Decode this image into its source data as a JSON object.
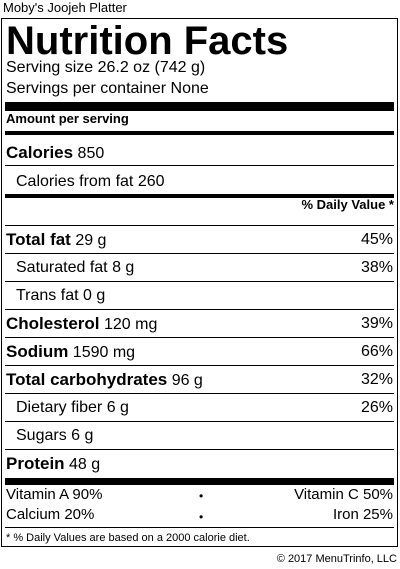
{
  "restaurant": "Moby's Joojeh Platter",
  "title": "Nutrition Facts",
  "serving_size": "Serving size 26.2 oz (742 g)",
  "servings_per_container": "Servings per container None",
  "amount_per_serving": "Amount per serving",
  "calories": {
    "label": "Calories",
    "value": "850"
  },
  "calories_from_fat": {
    "label": "Calories from fat",
    "value": "260"
  },
  "daily_value_header": "% Daily Value *",
  "nutrients": [
    {
      "label": "Total fat",
      "amount": "29 g",
      "dv": "45%"
    },
    {
      "label": "Saturated fat",
      "amount": "8 g",
      "dv": "38%"
    },
    {
      "label": "Trans fat",
      "amount": "0 g",
      "dv": ""
    },
    {
      "label": "Cholesterol",
      "amount": "120 mg",
      "dv": "39%"
    },
    {
      "label": "Sodium",
      "amount": "1590 mg",
      "dv": "66%"
    },
    {
      "label": "Total carbohydrates",
      "amount": "96 g",
      "dv": "32%"
    },
    {
      "label": "Dietary fiber",
      "amount": "6 g",
      "dv": "26%"
    },
    {
      "label": "Sugars",
      "amount": "6 g",
      "dv": ""
    },
    {
      "label": "Protein",
      "amount": "48 g",
      "dv": ""
    }
  ],
  "vitamins": [
    {
      "left": "Vitamin A 90%",
      "right": "Vitamin C 50%"
    },
    {
      "left": "Calcium 20%",
      "right": "Iron 25%"
    }
  ],
  "bullet": "•",
  "footnote": "* % Daily Values are based on a 2000 calorie diet.",
  "copyright": "© 2017 MenuTrinfo, LLC"
}
